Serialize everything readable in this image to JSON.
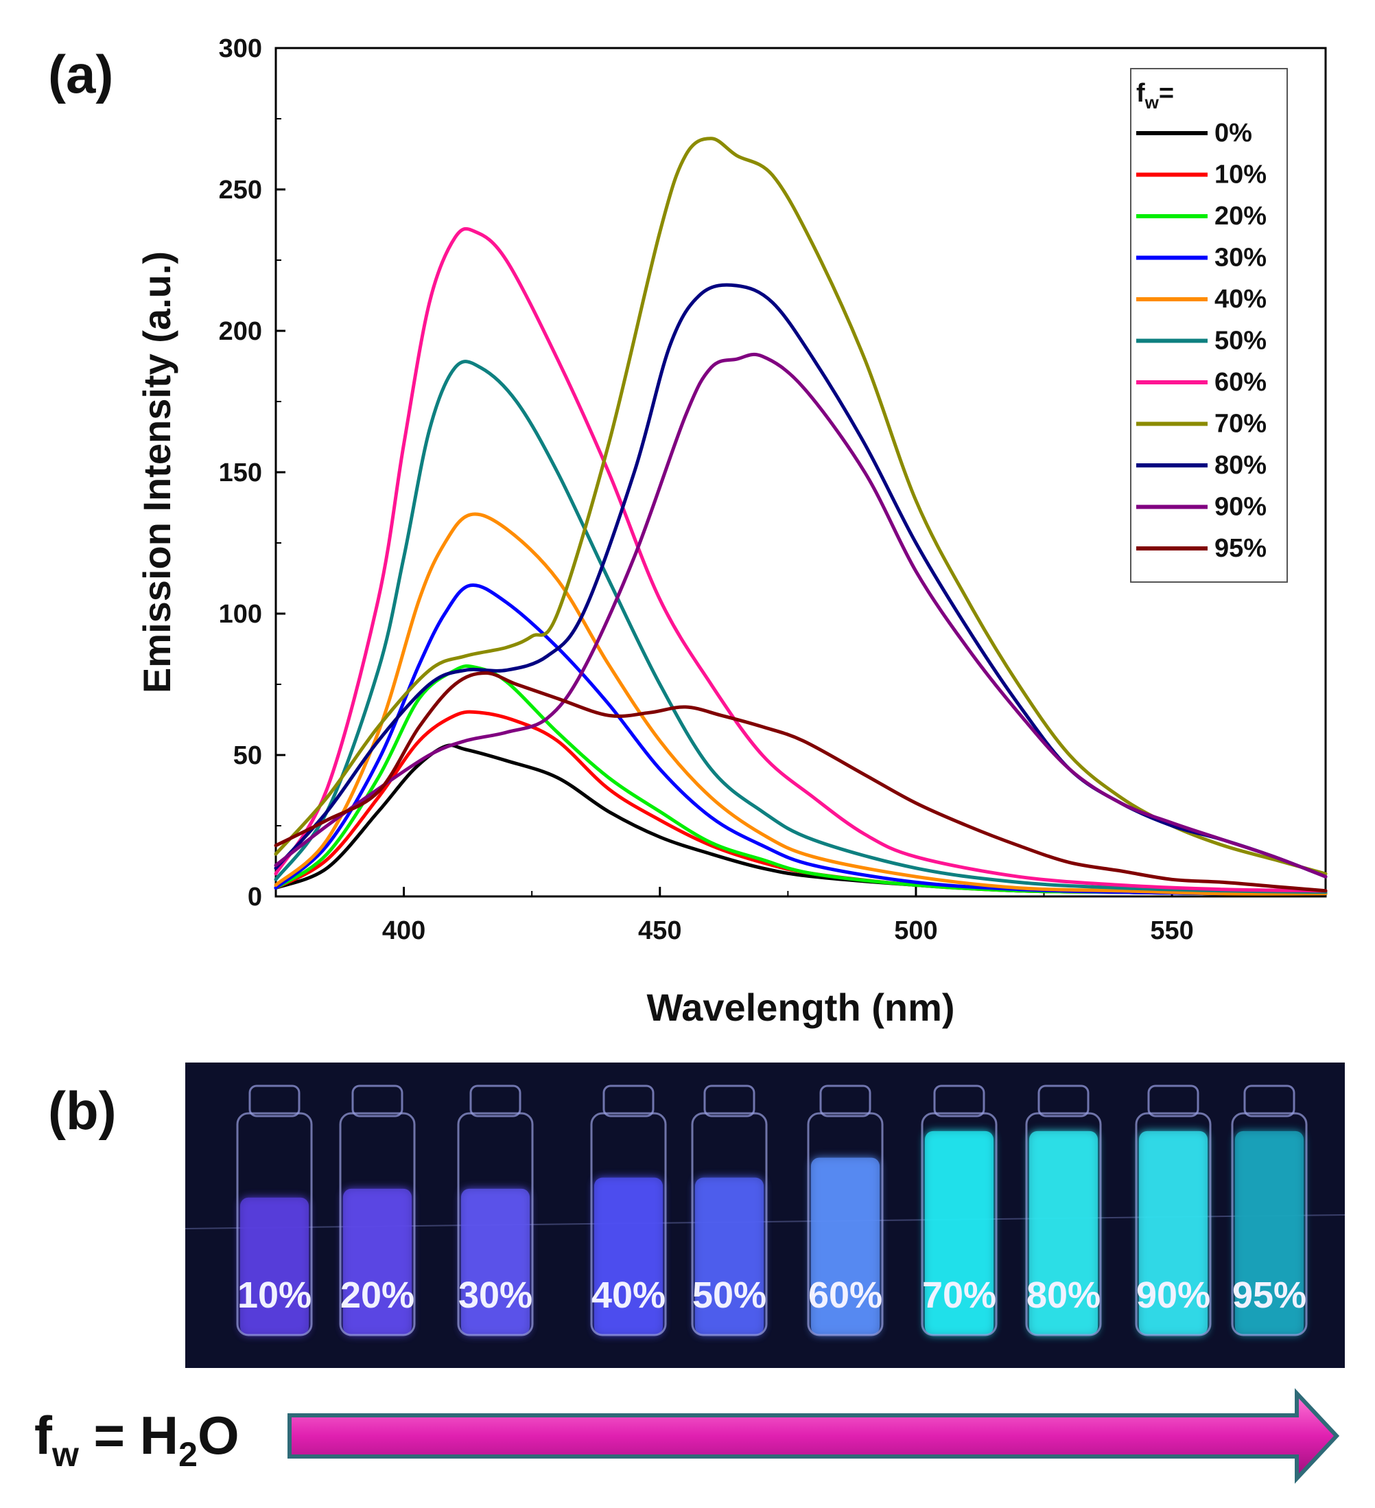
{
  "panel_a_label": "(a)",
  "panel_b_label": "(b)",
  "chart_data": {
    "type": "line",
    "title": "",
    "xlabel": "Wavelength (nm)",
    "ylabel": "Emission Intensity (a.u.)",
    "xlim": [
      375,
      580
    ],
    "ylim": [
      0,
      300
    ],
    "xticks": [
      400,
      450,
      500,
      550
    ],
    "yticks": [
      0,
      50,
      100,
      150,
      200,
      250,
      300
    ],
    "legend_position": "top-right",
    "legend_title": "f",
    "legend_title_sub": "w",
    "legend_title_suffix": "=",
    "grid": false,
    "series": [
      {
        "name": "0%",
        "color": "#000000",
        "points": [
          [
            375,
            3
          ],
          [
            385,
            10
          ],
          [
            395,
            30
          ],
          [
            402,
            45
          ],
          [
            408,
            53
          ],
          [
            412,
            52
          ],
          [
            420,
            48
          ],
          [
            430,
            42
          ],
          [
            440,
            30
          ],
          [
            450,
            21
          ],
          [
            460,
            15
          ],
          [
            470,
            10
          ],
          [
            480,
            7
          ],
          [
            500,
            4
          ],
          [
            520,
            2
          ],
          [
            540,
            1.5
          ],
          [
            560,
            1
          ],
          [
            580,
            1
          ]
        ]
      },
      {
        "name": "10%",
        "color": "#ff0000",
        "points": [
          [
            375,
            3
          ],
          [
            385,
            13
          ],
          [
            395,
            35
          ],
          [
            403,
            55
          ],
          [
            410,
            64
          ],
          [
            415,
            65
          ],
          [
            422,
            62
          ],
          [
            430,
            55
          ],
          [
            440,
            38
          ],
          [
            450,
            27
          ],
          [
            460,
            18
          ],
          [
            470,
            12
          ],
          [
            480,
            8
          ],
          [
            500,
            4
          ],
          [
            520,
            2
          ],
          [
            540,
            1.5
          ],
          [
            560,
            1
          ],
          [
            580,
            1
          ]
        ]
      },
      {
        "name": "20%",
        "color": "#00ee00",
        "points": [
          [
            375,
            3
          ],
          [
            385,
            15
          ],
          [
            395,
            42
          ],
          [
            403,
            70
          ],
          [
            410,
            80
          ],
          [
            414,
            81
          ],
          [
            420,
            76
          ],
          [
            430,
            58
          ],
          [
            440,
            42
          ],
          [
            450,
            30
          ],
          [
            460,
            19
          ],
          [
            470,
            13
          ],
          [
            480,
            8
          ],
          [
            500,
            4
          ],
          [
            520,
            2
          ],
          [
            540,
            1.5
          ],
          [
            560,
            1
          ],
          [
            580,
            1
          ]
        ]
      },
      {
        "name": "30%",
        "color": "#0000ff",
        "points": [
          [
            375,
            3
          ],
          [
            385,
            18
          ],
          [
            395,
            48
          ],
          [
            403,
            82
          ],
          [
            408,
            100
          ],
          [
            413,
            110
          ],
          [
            420,
            104
          ],
          [
            430,
            88
          ],
          [
            440,
            68
          ],
          [
            450,
            45
          ],
          [
            460,
            28
          ],
          [
            470,
            18
          ],
          [
            480,
            11
          ],
          [
            500,
            5
          ],
          [
            520,
            2.5
          ],
          [
            540,
            1.5
          ],
          [
            560,
            1
          ],
          [
            580,
            1
          ]
        ]
      },
      {
        "name": "40%",
        "color": "#ff8c00",
        "points": [
          [
            375,
            4
          ],
          [
            385,
            20
          ],
          [
            395,
            58
          ],
          [
            403,
            105
          ],
          [
            408,
            125
          ],
          [
            413,
            135
          ],
          [
            420,
            130
          ],
          [
            430,
            112
          ],
          [
            440,
            82
          ],
          [
            450,
            55
          ],
          [
            460,
            35
          ],
          [
            470,
            22
          ],
          [
            480,
            14
          ],
          [
            500,
            7
          ],
          [
            520,
            3
          ],
          [
            540,
            2
          ],
          [
            560,
            1
          ],
          [
            580,
            1
          ]
        ]
      },
      {
        "name": "50%",
        "color": "#0e8080",
        "points": [
          [
            375,
            6
          ],
          [
            385,
            30
          ],
          [
            395,
            80
          ],
          [
            400,
            120
          ],
          [
            405,
            165
          ],
          [
            410,
            187
          ],
          [
            415,
            187
          ],
          [
            422,
            175
          ],
          [
            430,
            150
          ],
          [
            440,
            112
          ],
          [
            450,
            75
          ],
          [
            460,
            45
          ],
          [
            470,
            30
          ],
          [
            480,
            20
          ],
          [
            500,
            10
          ],
          [
            520,
            5
          ],
          [
            540,
            3
          ],
          [
            560,
            2
          ],
          [
            580,
            1.5
          ]
        ]
      },
      {
        "name": "60%",
        "color": "#ff1493",
        "points": [
          [
            375,
            8
          ],
          [
            385,
            38
          ],
          [
            395,
            105
          ],
          [
            400,
            160
          ],
          [
            405,
            210
          ],
          [
            410,
            233
          ],
          [
            414,
            235
          ],
          [
            420,
            225
          ],
          [
            430,
            190
          ],
          [
            440,
            150
          ],
          [
            450,
            105
          ],
          [
            460,
            75
          ],
          [
            470,
            50
          ],
          [
            480,
            35
          ],
          [
            490,
            22
          ],
          [
            500,
            14
          ],
          [
            520,
            7
          ],
          [
            540,
            4
          ],
          [
            560,
            2.5
          ],
          [
            580,
            2
          ]
        ]
      },
      {
        "name": "70%",
        "color": "#8b8b00",
        "points": [
          [
            375,
            15
          ],
          [
            385,
            35
          ],
          [
            395,
            60
          ],
          [
            405,
            80
          ],
          [
            412,
            85
          ],
          [
            420,
            88
          ],
          [
            425,
            92
          ],
          [
            430,
            100
          ],
          [
            440,
            160
          ],
          [
            450,
            235
          ],
          [
            455,
            262
          ],
          [
            460,
            268
          ],
          [
            465,
            262
          ],
          [
            472,
            255
          ],
          [
            480,
            230
          ],
          [
            490,
            190
          ],
          [
            500,
            140
          ],
          [
            510,
            105
          ],
          [
            520,
            75
          ],
          [
            530,
            50
          ],
          [
            540,
            35
          ],
          [
            550,
            25
          ],
          [
            560,
            18
          ],
          [
            570,
            13
          ],
          [
            580,
            8
          ]
        ]
      },
      {
        "name": "80%",
        "color": "#000080",
        "points": [
          [
            375,
            10
          ],
          [
            385,
            30
          ],
          [
            395,
            55
          ],
          [
            405,
            75
          ],
          [
            412,
            80
          ],
          [
            420,
            80
          ],
          [
            428,
            85
          ],
          [
            435,
            100
          ],
          [
            445,
            150
          ],
          [
            452,
            195
          ],
          [
            458,
            213
          ],
          [
            465,
            216
          ],
          [
            472,
            210
          ],
          [
            480,
            190
          ],
          [
            490,
            160
          ],
          [
            500,
            125
          ],
          [
            510,
            95
          ],
          [
            520,
            68
          ],
          [
            530,
            45
          ],
          [
            540,
            33
          ],
          [
            550,
            25
          ],
          [
            560,
            20
          ],
          [
            570,
            14
          ],
          [
            580,
            7
          ]
        ]
      },
      {
        "name": "90%",
        "color": "#800080",
        "points": [
          [
            375,
            11
          ],
          [
            385,
            25
          ],
          [
            395,
            38
          ],
          [
            405,
            50
          ],
          [
            412,
            55
          ],
          [
            420,
            58
          ],
          [
            428,
            63
          ],
          [
            435,
            80
          ],
          [
            445,
            120
          ],
          [
            455,
            170
          ],
          [
            460,
            187
          ],
          [
            465,
            190
          ],
          [
            470,
            191
          ],
          [
            478,
            180
          ],
          [
            490,
            150
          ],
          [
            500,
            115
          ],
          [
            510,
            88
          ],
          [
            520,
            65
          ],
          [
            530,
            45
          ],
          [
            540,
            33
          ],
          [
            550,
            26
          ],
          [
            560,
            20
          ],
          [
            570,
            14
          ],
          [
            580,
            7
          ]
        ]
      },
      {
        "name": "95%",
        "color": "#800000",
        "points": [
          [
            375,
            18
          ],
          [
            385,
            27
          ],
          [
            395,
            37
          ],
          [
            403,
            60
          ],
          [
            410,
            75
          ],
          [
            416,
            79
          ],
          [
            422,
            75
          ],
          [
            430,
            70
          ],
          [
            440,
            64
          ],
          [
            448,
            65
          ],
          [
            455,
            67
          ],
          [
            462,
            64
          ],
          [
            470,
            60
          ],
          [
            478,
            55
          ],
          [
            490,
            43
          ],
          [
            500,
            33
          ],
          [
            510,
            25
          ],
          [
            520,
            18
          ],
          [
            530,
            12
          ],
          [
            540,
            9
          ],
          [
            550,
            6
          ],
          [
            560,
            5
          ],
          [
            570,
            3.5
          ],
          [
            580,
            2
          ]
        ]
      }
    ]
  },
  "vials": [
    {
      "label": "10%",
      "glow": "#5a3fe0",
      "top": 0.62
    },
    {
      "label": "20%",
      "glow": "#5d48ea",
      "top": 0.66
    },
    {
      "label": "30%",
      "glow": "#5e55f0",
      "top": 0.66
    },
    {
      "label": "40%",
      "glow": "#4f50f5",
      "top": 0.71
    },
    {
      "label": "50%",
      "glow": "#5060f3",
      "top": 0.71
    },
    {
      "label": "60%",
      "glow": "#5a8ef8",
      "top": 0.8
    },
    {
      "label": "70%",
      "glow": "#22e8f2",
      "top": 0.92
    },
    {
      "label": "80%",
      "glow": "#2ee6ee",
      "top": 0.92
    },
    {
      "label": "90%",
      "glow": "#32e0ee",
      "top": 0.92
    },
    {
      "label": "95%",
      "glow": "#1aa6bd",
      "top": 0.92
    }
  ],
  "bottom_label": {
    "f": "f",
    "sub_w": "w",
    "equals": " = H",
    "sub_2": "2",
    "o": "O"
  },
  "arrow_color": "#e020b0"
}
